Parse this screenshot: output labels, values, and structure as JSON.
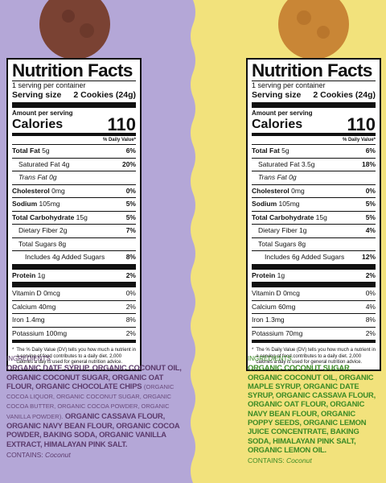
{
  "panels": [
    {
      "facts": {
        "title": "Nutrition Facts",
        "servings": "1 serving per container",
        "serving_size_label": "Serving size",
        "serving_size": "2 Cookies (24g)",
        "amount": "Amount per serving",
        "calories_label": "Calories",
        "calories": "110",
        "dv_header": "% Daily Value*",
        "rows": [
          {
            "name": "Total Fat",
            "amount": "5g",
            "dv": "6%"
          },
          {
            "name": "Saturated Fat",
            "amount": "4g",
            "dv": "20%"
          },
          {
            "name": "Trans Fat",
            "amount": "0g"
          },
          {
            "name": "Cholesterol",
            "amount": "0mg",
            "dv": "0%"
          },
          {
            "name": "Sodium",
            "amount": "105mg",
            "dv": "5%"
          },
          {
            "name": "Total Carbohydrate",
            "amount": "15g",
            "dv": "5%"
          },
          {
            "name": "Dietary Fiber",
            "amount": "2g",
            "dv": "7%"
          },
          {
            "name": "Total Sugars",
            "amount": "8g"
          },
          {
            "name": "Includes 4g Added Sugars",
            "dv": "8%"
          },
          {
            "name": "Protein",
            "amount": "1g",
            "dv": "2%"
          }
        ],
        "vitamins": [
          {
            "name": "Vitamin D",
            "amount": "0mcg",
            "dv": "0%"
          },
          {
            "name": "Calcium",
            "amount": "40mg",
            "dv": "2%"
          },
          {
            "name": "Iron",
            "amount": "1.4mg",
            "dv": "8%"
          },
          {
            "name": "Potassium",
            "amount": "100mg",
            "dv": "2%"
          }
        ],
        "footnote_mark": "*",
        "footnote": "The % Daily Value (DV) tells you how much a nutrient in a serving of food contributes to a daily diet. 2,000 calories a day is used for general nutrition advice."
      },
      "ingredients": {
        "heading": "INGREDIENTS:",
        "parts": [
          "ORGANIC DATE SYRUP, ORGANIC COCONUT OIL, ORGANIC COCONUT SUGAR, ORGANIC OAT FLOUR, ORGANIC CHOCOLATE CHIPS",
          "(ORGANIC COCOA LIQUOR, ORGANIC COCONUT SUGAR, ORGANIC COCOA BUTTER, ORGANIC COCOA POWDER, ORGANIC VANILLA POWDER).",
          "ORGANIC CASSAVA FLOUR, ORGANIC NAVY BEAN FLOUR, ORGANIC COCOA POWDER, BAKING SODA, ORGANIC VANILLA EXTRACT, HIMALAYAN PINK SALT."
        ],
        "contains_label": "CONTAINS:",
        "contains": "Coconut"
      }
    },
    {
      "facts": {
        "title": "Nutrition Facts",
        "servings": "1 serving per container",
        "serving_size_label": "Serving size",
        "serving_size": "2 Cookies (24g)",
        "amount": "Amount per serving",
        "calories_label": "Calories",
        "calories": "110",
        "dv_header": "% Daily Value*",
        "rows": [
          {
            "name": "Total Fat",
            "amount": "5g",
            "dv": "6%"
          },
          {
            "name": "Saturated Fat",
            "amount": "3.5g",
            "dv": "18%"
          },
          {
            "name": "Trans Fat",
            "amount": "0g"
          },
          {
            "name": "Cholesterol",
            "amount": "0mg",
            "dv": "0%"
          },
          {
            "name": "Sodium",
            "amount": "105mg",
            "dv": "5%"
          },
          {
            "name": "Total Carbohydrate",
            "amount": "15g",
            "dv": "5%"
          },
          {
            "name": "Dietary Fiber",
            "amount": "1g",
            "dv": "4%"
          },
          {
            "name": "Total Sugars",
            "amount": "8g"
          },
          {
            "name": "Includes 6g Added Sugars",
            "dv": "12%"
          },
          {
            "name": "Protein",
            "amount": "1g",
            "dv": "2%"
          }
        ],
        "vitamins": [
          {
            "name": "Vitamin D",
            "amount": "0mcg",
            "dv": "0%"
          },
          {
            "name": "Calcium",
            "amount": "60mg",
            "dv": "4%"
          },
          {
            "name": "Iron",
            "amount": "1.3mg",
            "dv": "8%"
          },
          {
            "name": "Potassium",
            "amount": "70mg",
            "dv": "2%"
          }
        ],
        "footnote_mark": "*",
        "footnote": "The % Daily Value (DV) tells you how much a nutrient in a serving of food contributes to a daily diet. 2,000 calories a day is used for general nutrition advice."
      },
      "ingredients": {
        "heading": "INGREDIENTS:",
        "parts": [
          "ORGANIC COCONUT SUGAR, ORGANIC COCONUT OIL, ORGANIC MAPLE SYRUP, ORGANIC DATE SYRUP, ORGANIC CASSAVA FLOUR, ORGANIC OAT FLOUR, ORGANIC NAVY BEAN FLOUR, ORGANIC POPPY SEEDS, ORGANIC LEMON JUICE CONCENTRATE, BAKING SODA, HIMALAYAN PINK SALT, ORGANIC LEMON OIL."
        ],
        "contains_label": "CONTAINS:",
        "contains": "Coconut"
      }
    }
  ]
}
